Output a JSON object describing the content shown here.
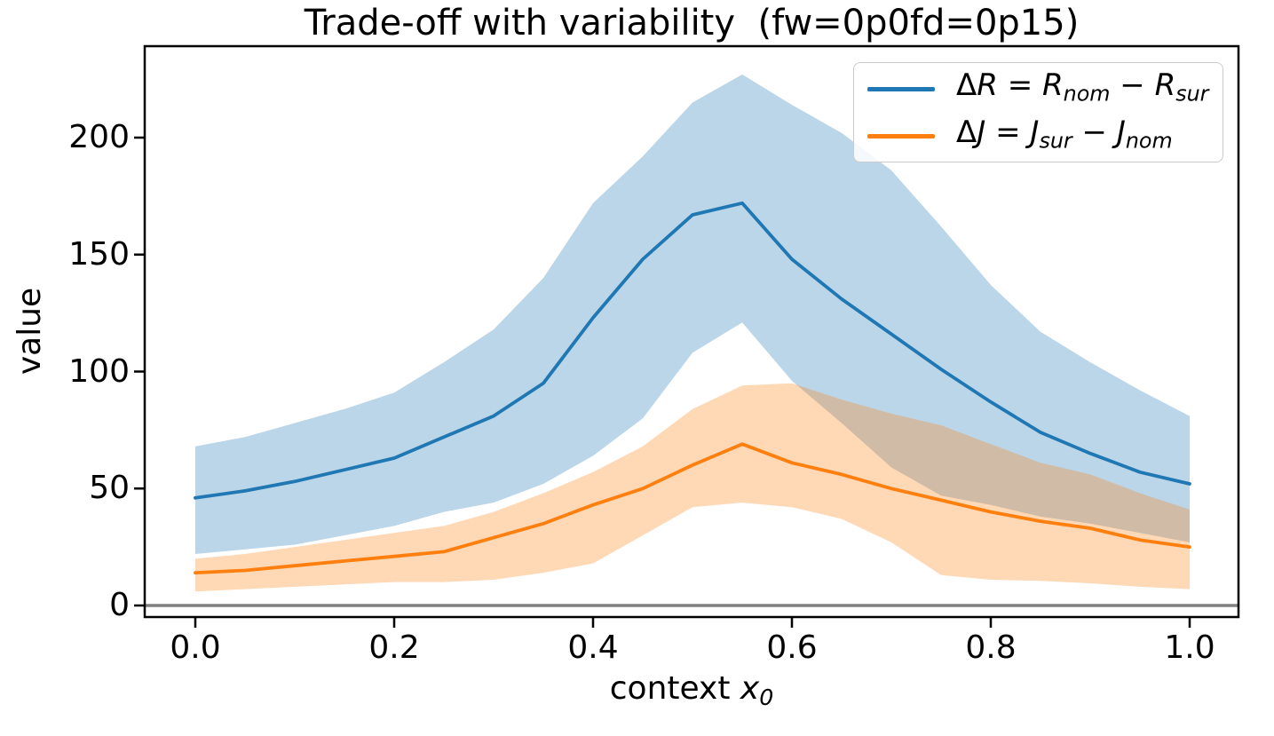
{
  "figure": {
    "title": "Trade-off with variability  (fw=0p0fd=0p15)",
    "y_axis": {
      "label": "value",
      "ticks": [
        "0",
        "50",
        "100",
        "150",
        "200"
      ]
    },
    "x_axis": {
      "label_prefix": "context ",
      "label_var": "x",
      "label_sub": "0",
      "ticks": [
        "0.0",
        "0.2",
        "0.4",
        "0.6",
        "0.8",
        "1.0"
      ]
    },
    "legend": {
      "entries": [
        {
          "label": "ΔR = R_nom − R_sur",
          "color": "#1f77b4",
          "delta": "Δ",
          "var": "R",
          "eq": " = ",
          "base1": "R",
          "sub1": "nom",
          "minus": " − ",
          "base2": "R",
          "sub2": "sur"
        },
        {
          "label": "ΔJ = J_sur − J_nom",
          "color": "#ff7f0e",
          "delta": "Δ",
          "var": "J",
          "eq": " = ",
          "base1": "J",
          "sub1": "sur",
          "minus": " − ",
          "base2": "J",
          "sub2": "nom"
        }
      ]
    }
  },
  "chart_data": {
    "type": "line",
    "title": "Trade-off with variability  (fw=0p0fd=0p15)",
    "xlabel": "context x_0",
    "ylabel": "value",
    "xlim": [
      -0.051,
      1.049
    ],
    "ylim": [
      -5,
      239
    ],
    "x_ticks": [
      0,
      0.2,
      0.4,
      0.6,
      0.8,
      1.0
    ],
    "y_ticks": [
      0,
      50,
      100,
      150,
      200
    ],
    "grid": false,
    "legend_position": "upper right",
    "x": [
      0,
      0.05,
      0.1,
      0.15,
      0.2,
      0.25,
      0.3,
      0.35,
      0.4,
      0.45,
      0.5,
      0.55,
      0.6,
      0.65,
      0.7,
      0.75,
      0.8,
      0.85,
      0.9,
      0.95,
      1.0
    ],
    "series": [
      {
        "name": "ΔR = R_nom − R_sur",
        "color": "#1f77b4",
        "band_alpha": 0.3,
        "values": [
          46,
          49,
          53,
          58,
          63,
          72,
          81,
          95,
          123,
          148,
          167,
          172,
          148,
          131,
          116,
          101,
          87,
          74,
          65,
          57,
          52
        ],
        "band_lower": [
          22,
          24,
          26,
          30,
          34,
          40,
          44,
          52,
          64,
          80,
          108,
          121,
          96,
          78,
          59,
          47,
          43,
          38,
          35,
          31,
          27
        ],
        "band_upper": [
          68,
          72,
          78,
          84,
          91,
          104,
          118,
          140,
          172,
          192,
          215,
          227,
          214,
          202,
          186,
          162,
          137,
          117,
          104,
          92,
          81
        ]
      },
      {
        "name": "ΔJ = J_sur − J_nom",
        "color": "#ff7f0e",
        "band_alpha": 0.3,
        "values": [
          14,
          15,
          17,
          19,
          21,
          23,
          29,
          35,
          43,
          50,
          60,
          69,
          61,
          56,
          50,
          45,
          40,
          36,
          33,
          28,
          25
        ],
        "band_lower": [
          6,
          7,
          8,
          9,
          10,
          10,
          11,
          14,
          18,
          30,
          42,
          44,
          42,
          37,
          27,
          13,
          11,
          10.5,
          9.5,
          8,
          7
        ],
        "band_upper": [
          20,
          22,
          25,
          28,
          31,
          34,
          40,
          48,
          57,
          68,
          84,
          94,
          95,
          88,
          82,
          77,
          69,
          61,
          56,
          48,
          41
        ]
      }
    ],
    "annotations": [
      {
        "type": "hline",
        "y": 0,
        "color": "#808080"
      }
    ]
  }
}
